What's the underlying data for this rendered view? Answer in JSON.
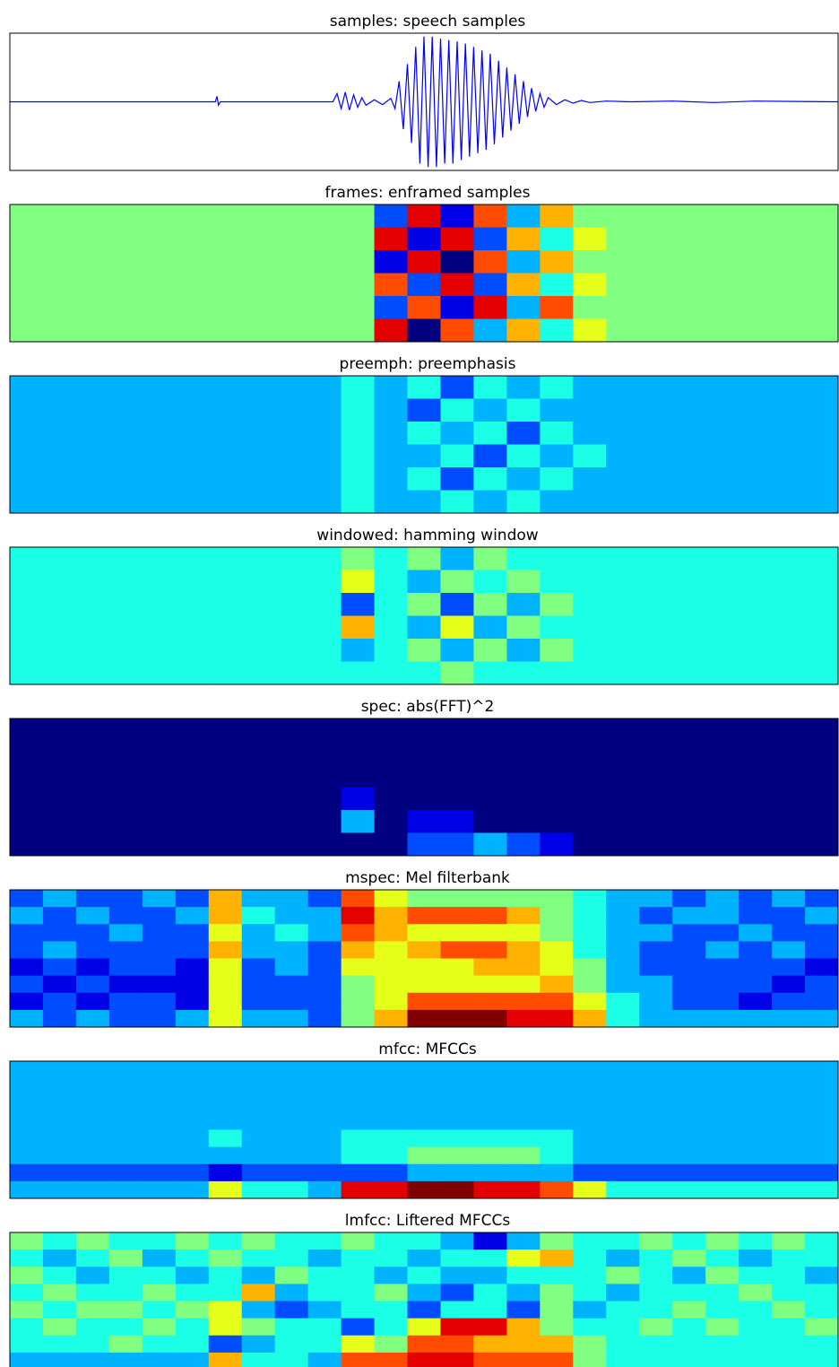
{
  "chart_data": [
    {
      "type": "line",
      "title": "samples: speech samples",
      "color": "#0000ff",
      "xlim": [
        0,
        100
      ],
      "ylim": [
        -1,
        1
      ],
      "x": [
        0,
        20,
        24.8,
        25,
        25.2,
        25.4,
        39,
        39.5,
        40,
        40.5,
        41,
        41.5,
        42,
        42.5,
        43,
        44,
        45,
        46,
        46.5,
        47,
        47.5,
        48,
        48.5,
        49,
        49.5,
        50,
        50.5,
        51,
        51.5,
        52,
        52.5,
        53,
        53.5,
        54,
        54.5,
        55,
        55.5,
        56,
        56.5,
        57,
        57.5,
        58,
        58.5,
        59,
        59.5,
        60,
        60.5,
        61,
        61.5,
        62,
        62.5,
        63,
        63.5,
        64,
        64.5,
        65,
        66,
        67,
        68,
        69,
        70,
        72,
        75,
        80,
        85,
        90,
        100
      ],
      "values": [
        0,
        0,
        0,
        0.08,
        -0.05,
        0,
        0,
        0.12,
        -0.1,
        0.14,
        -0.12,
        0.1,
        -0.08,
        0.06,
        -0.05,
        0.03,
        -0.04,
        0.05,
        -0.1,
        0.3,
        -0.4,
        0.55,
        -0.6,
        0.8,
        -0.9,
        0.95,
        -0.95,
        0.95,
        -0.95,
        0.92,
        -0.9,
        0.9,
        -0.9,
        0.88,
        -0.85,
        0.85,
        -0.8,
        0.8,
        -0.75,
        0.75,
        -0.7,
        0.7,
        -0.62,
        0.6,
        -0.52,
        0.5,
        -0.42,
        0.4,
        -0.32,
        0.3,
        -0.22,
        0.2,
        -0.14,
        0.12,
        -0.08,
        0.06,
        -0.04,
        0.03,
        -0.02,
        0.02,
        -0.01,
        0.01,
        0,
        0.01,
        -0.01,
        0.01,
        0
      ]
    },
    {
      "type": "heatmap",
      "title": "frames: enframed samples",
      "colormap": "jet",
      "clim": [
        0,
        10
      ],
      "values": [
        [
          5,
          5,
          5,
          5,
          5,
          5,
          5,
          5,
          5,
          5,
          5,
          2,
          9,
          1,
          8,
          3,
          7,
          5,
          5,
          5,
          5,
          5,
          5,
          5,
          5
        ],
        [
          5,
          5,
          5,
          5,
          5,
          5,
          5,
          5,
          5,
          5,
          5,
          9,
          1,
          9,
          2,
          7,
          4,
          6,
          5,
          5,
          5,
          5,
          5,
          5,
          5
        ],
        [
          5,
          5,
          5,
          5,
          5,
          5,
          5,
          5,
          5,
          5,
          5,
          1,
          9,
          0,
          8,
          3,
          7,
          5,
          5,
          5,
          5,
          5,
          5,
          5,
          5
        ],
        [
          5,
          5,
          5,
          5,
          5,
          5,
          5,
          5,
          5,
          5,
          5,
          8,
          2,
          9,
          2,
          7,
          4,
          6,
          5,
          5,
          5,
          5,
          5,
          5,
          5
        ],
        [
          5,
          5,
          5,
          5,
          5,
          5,
          5,
          5,
          5,
          5,
          5,
          2,
          8,
          1,
          9,
          3,
          8,
          5,
          5,
          5,
          5,
          5,
          5,
          5,
          5
        ],
        [
          5,
          5,
          5,
          5,
          5,
          5,
          5,
          5,
          5,
          5,
          5,
          9,
          0,
          8,
          3,
          7,
          4,
          6,
          5,
          5,
          5,
          5,
          5,
          5,
          5
        ]
      ]
    },
    {
      "type": "heatmap",
      "title": "preemph: preemphasis",
      "colormap": "jet",
      "clim": [
        0,
        10
      ],
      "values": [
        [
          3,
          3,
          3,
          3,
          3,
          3,
          3,
          3,
          3,
          3,
          4,
          3,
          4,
          2,
          4,
          3,
          4,
          3,
          3,
          3,
          3,
          3,
          3,
          3,
          3
        ],
        [
          3,
          3,
          3,
          3,
          3,
          3,
          3,
          3,
          3,
          3,
          4,
          3,
          2,
          4,
          3,
          4,
          3,
          3,
          3,
          3,
          3,
          3,
          3,
          3,
          3
        ],
        [
          3,
          3,
          3,
          3,
          3,
          3,
          3,
          3,
          3,
          3,
          4,
          3,
          4,
          3,
          4,
          2,
          4,
          3,
          3,
          3,
          3,
          3,
          3,
          3,
          3
        ],
        [
          3,
          3,
          3,
          3,
          3,
          3,
          3,
          3,
          3,
          3,
          4,
          3,
          3,
          4,
          2,
          4,
          3,
          4,
          3,
          3,
          3,
          3,
          3,
          3,
          3
        ],
        [
          3,
          3,
          3,
          3,
          3,
          3,
          3,
          3,
          3,
          3,
          4,
          3,
          4,
          2,
          4,
          3,
          4,
          3,
          3,
          3,
          3,
          3,
          3,
          3,
          3
        ],
        [
          3,
          3,
          3,
          3,
          3,
          3,
          3,
          3,
          3,
          3,
          4,
          3,
          3,
          4,
          3,
          4,
          3,
          3,
          3,
          3,
          3,
          3,
          3,
          3,
          3
        ]
      ]
    },
    {
      "type": "heatmap",
      "title": "windowed: hamming window",
      "colormap": "jet",
      "clim": [
        0,
        10
      ],
      "values": [
        [
          4,
          4,
          4,
          4,
          4,
          4,
          4,
          4,
          4,
          4,
          5,
          4,
          5,
          3,
          5,
          4,
          4,
          4,
          4,
          4,
          4,
          4,
          4,
          4,
          4
        ],
        [
          4,
          4,
          4,
          4,
          4,
          4,
          4,
          4,
          4,
          4,
          6,
          4,
          3,
          5,
          4,
          5,
          4,
          4,
          4,
          4,
          4,
          4,
          4,
          4,
          4
        ],
        [
          4,
          4,
          4,
          4,
          4,
          4,
          4,
          4,
          4,
          4,
          2,
          4,
          5,
          2,
          5,
          3,
          5,
          4,
          4,
          4,
          4,
          4,
          4,
          4,
          4
        ],
        [
          4,
          4,
          4,
          4,
          4,
          4,
          4,
          4,
          4,
          4,
          7,
          4,
          3,
          6,
          3,
          5,
          4,
          4,
          4,
          4,
          4,
          4,
          4,
          4,
          4
        ],
        [
          4,
          4,
          4,
          4,
          4,
          4,
          4,
          4,
          4,
          4,
          3,
          4,
          5,
          3,
          5,
          3,
          5,
          4,
          4,
          4,
          4,
          4,
          4,
          4,
          4
        ],
        [
          4,
          4,
          4,
          4,
          4,
          4,
          4,
          4,
          4,
          4,
          4,
          4,
          4,
          5,
          4,
          4,
          4,
          4,
          4,
          4,
          4,
          4,
          4,
          4,
          4
        ]
      ]
    },
    {
      "type": "heatmap",
      "title": "spec: abs(FFT)^2",
      "colormap": "jet",
      "clim": [
        0,
        10
      ],
      "values": [
        [
          0,
          0,
          0,
          0,
          0,
          0,
          0,
          0,
          0,
          0,
          0,
          0,
          0,
          0,
          0,
          0,
          0,
          0,
          0,
          0,
          0,
          0,
          0,
          0,
          0
        ],
        [
          0,
          0,
          0,
          0,
          0,
          0,
          0,
          0,
          0,
          0,
          0,
          0,
          0,
          0,
          0,
          0,
          0,
          0,
          0,
          0,
          0,
          0,
          0,
          0,
          0
        ],
        [
          0,
          0,
          0,
          0,
          0,
          0,
          0,
          0,
          0,
          0,
          0,
          0,
          0,
          0,
          0,
          0,
          0,
          0,
          0,
          0,
          0,
          0,
          0,
          0,
          0
        ],
        [
          0,
          0,
          0,
          0,
          0,
          0,
          0,
          0,
          0,
          0,
          1,
          0,
          0,
          0,
          0,
          0,
          0,
          0,
          0,
          0,
          0,
          0,
          0,
          0,
          0
        ],
        [
          0,
          0,
          0,
          0,
          0,
          0,
          0,
          0,
          0,
          0,
          3,
          0,
          1,
          1,
          0,
          0,
          0,
          0,
          0,
          0,
          0,
          0,
          0,
          0,
          0
        ],
        [
          0,
          0,
          0,
          0,
          0,
          0,
          0,
          0,
          0,
          0,
          0,
          0,
          2,
          2,
          3,
          2,
          1,
          0,
          0,
          0,
          0,
          0,
          0,
          0,
          0
        ]
      ]
    },
    {
      "type": "heatmap",
      "title": "mspec: Mel filterbank",
      "colormap": "jet",
      "clim": [
        0,
        10
      ],
      "values": [
        [
          2,
          3,
          2,
          2,
          3,
          2,
          7,
          3,
          3,
          2,
          8,
          6,
          5,
          5,
          5,
          5,
          5,
          4,
          3,
          3,
          2,
          3,
          2,
          3,
          2
        ],
        [
          3,
          2,
          3,
          2,
          2,
          3,
          7,
          4,
          3,
          3,
          9,
          7,
          8,
          8,
          8,
          7,
          5,
          4,
          3,
          2,
          3,
          3,
          2,
          2,
          3
        ],
        [
          2,
          2,
          2,
          3,
          2,
          2,
          6,
          3,
          4,
          3,
          8,
          7,
          6,
          6,
          6,
          6,
          5,
          4,
          3,
          3,
          2,
          2,
          3,
          2,
          2
        ],
        [
          2,
          3,
          2,
          2,
          2,
          2,
          7,
          3,
          3,
          2,
          7,
          6,
          7,
          8,
          8,
          7,
          6,
          4,
          3,
          2,
          2,
          3,
          2,
          3,
          2
        ],
        [
          1,
          2,
          1,
          2,
          2,
          1,
          6,
          2,
          3,
          2,
          6,
          6,
          6,
          6,
          7,
          7,
          6,
          5,
          3,
          2,
          2,
          2,
          2,
          2,
          1
        ],
        [
          2,
          1,
          2,
          1,
          1,
          1,
          6,
          2,
          2,
          2,
          5,
          6,
          6,
          6,
          6,
          6,
          7,
          5,
          3,
          3,
          2,
          2,
          2,
          1,
          2
        ],
        [
          1,
          2,
          1,
          2,
          2,
          1,
          6,
          2,
          2,
          2,
          5,
          6,
          8,
          8,
          8,
          8,
          8,
          6,
          4,
          3,
          2,
          2,
          1,
          2,
          2
        ],
        [
          3,
          2,
          3,
          2,
          2,
          3,
          6,
          3,
          3,
          2,
          5,
          7,
          10,
          10,
          10,
          9,
          9,
          7,
          4,
          3,
          3,
          3,
          3,
          3,
          3
        ]
      ]
    },
    {
      "type": "heatmap",
      "title": "mfcc: MFCCs",
      "colormap": "jet",
      "clim": [
        0,
        10
      ],
      "values": [
        [
          3,
          3,
          3,
          3,
          3,
          3,
          3,
          3,
          3,
          3,
          3,
          3,
          3,
          3,
          3,
          3,
          3,
          3,
          3,
          3,
          3,
          3,
          3,
          3,
          3
        ],
        [
          3,
          3,
          3,
          3,
          3,
          3,
          3,
          3,
          3,
          3,
          3,
          3,
          3,
          3,
          3,
          3,
          3,
          3,
          3,
          3,
          3,
          3,
          3,
          3,
          3
        ],
        [
          3,
          3,
          3,
          3,
          3,
          3,
          3,
          3,
          3,
          3,
          3,
          3,
          3,
          3,
          3,
          3,
          3,
          3,
          3,
          3,
          3,
          3,
          3,
          3,
          3
        ],
        [
          3,
          3,
          3,
          3,
          3,
          3,
          3,
          3,
          3,
          3,
          3,
          3,
          3,
          3,
          3,
          3,
          3,
          3,
          3,
          3,
          3,
          3,
          3,
          3,
          3
        ],
        [
          3,
          3,
          3,
          3,
          3,
          3,
          4,
          3,
          3,
          3,
          4,
          4,
          4,
          4,
          4,
          4,
          4,
          3,
          3,
          3,
          3,
          3,
          3,
          3,
          3
        ],
        [
          3,
          3,
          3,
          3,
          3,
          3,
          3,
          3,
          3,
          3,
          4,
          4,
          5,
          5,
          5,
          5,
          4,
          3,
          3,
          3,
          3,
          3,
          3,
          3,
          3
        ],
        [
          2,
          2,
          2,
          2,
          2,
          2,
          1,
          2,
          2,
          2,
          2,
          2,
          3,
          3,
          3,
          3,
          3,
          2,
          2,
          2,
          2,
          2,
          2,
          2,
          2
        ],
        [
          3,
          3,
          3,
          3,
          3,
          3,
          6,
          4,
          4,
          3,
          9,
          9,
          10,
          10,
          9,
          9,
          8,
          6,
          4,
          4,
          4,
          4,
          4,
          4,
          4
        ]
      ]
    },
    {
      "type": "heatmap",
      "title": "lmfcc: Liftered MFCCs",
      "colormap": "jet",
      "clim": [
        0,
        10
      ],
      "values": [
        [
          5,
          4,
          5,
          4,
          4,
          5,
          4,
          5,
          4,
          4,
          5,
          4,
          4,
          3,
          1,
          3,
          5,
          4,
          4,
          5,
          4,
          5,
          4,
          5,
          4
        ],
        [
          4,
          3,
          4,
          5,
          3,
          4,
          5,
          4,
          4,
          3,
          4,
          4,
          3,
          4,
          4,
          6,
          7,
          4,
          3,
          4,
          5,
          4,
          3,
          4,
          4
        ],
        [
          5,
          4,
          3,
          4,
          4,
          3,
          4,
          3,
          5,
          4,
          4,
          3,
          4,
          3,
          3,
          4,
          4,
          4,
          5,
          4,
          3,
          5,
          4,
          4,
          3
        ],
        [
          4,
          5,
          4,
          4,
          5,
          4,
          4,
          7,
          3,
          4,
          4,
          5,
          3,
          2,
          4,
          3,
          5,
          4,
          3,
          4,
          4,
          4,
          5,
          4,
          4
        ],
        [
          5,
          4,
          5,
          5,
          4,
          5,
          6,
          3,
          2,
          3,
          4,
          4,
          2,
          4,
          4,
          2,
          5,
          3,
          4,
          4,
          5,
          4,
          4,
          5,
          4
        ],
        [
          4,
          5,
          4,
          4,
          5,
          4,
          6,
          5,
          4,
          4,
          2,
          4,
          6,
          9,
          9,
          7,
          5,
          4,
          4,
          5,
          4,
          5,
          4,
          4,
          5
        ],
        [
          4,
          4,
          4,
          5,
          4,
          4,
          2,
          3,
          4,
          4,
          6,
          5,
          8,
          8,
          7,
          7,
          7,
          5,
          4,
          4,
          4,
          4,
          4,
          4,
          4
        ],
        [
          3,
          3,
          3,
          3,
          3,
          3,
          7,
          4,
          4,
          3,
          8,
          8,
          9,
          9,
          8,
          8,
          8,
          5,
          4,
          4,
          4,
          4,
          4,
          4,
          4
        ]
      ]
    }
  ]
}
